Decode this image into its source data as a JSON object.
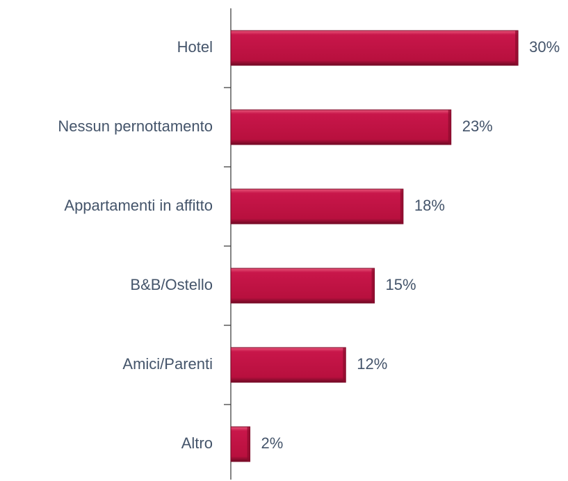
{
  "chart_data": {
    "type": "bar",
    "orientation": "horizontal",
    "categories": [
      "Hotel",
      "Nessun pernottamento",
      "Appartamenti in affitto",
      "B&B/Ostello",
      "Amici/Parenti",
      "Altro"
    ],
    "values": [
      30,
      23,
      18,
      15,
      12,
      2
    ],
    "value_labels": [
      "30%",
      "23%",
      "18%",
      "15%",
      "12%",
      "2%"
    ],
    "color": "#c0143c"
  }
}
